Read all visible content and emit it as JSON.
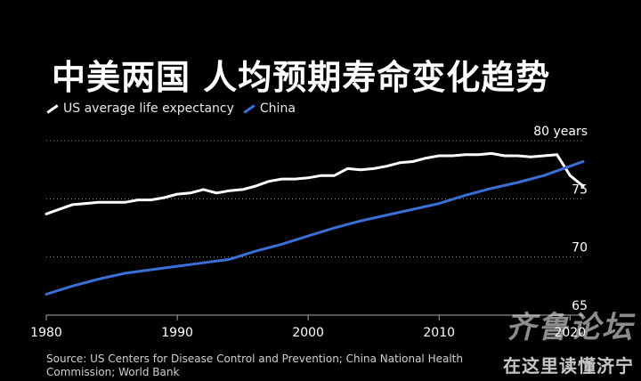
{
  "title": "中美两国 人均预期寿命变化趋势",
  "legend": {
    "us_label": "US average life expectancy",
    "china_label": "China"
  },
  "colors": {
    "us": "#ffffff",
    "china": "#3a6fd8",
    "grid": "#888888",
    "axis": "#aaaaaa"
  },
  "source_text": "Source: US Centers for Disease Control and Prevention; China National Health Commission; World Bank",
  "watermark": {
    "logo": "齐鲁论坛",
    "sub": "在这里读懂济宁"
  },
  "chart_data": {
    "type": "line",
    "title": "中美两国 人均预期寿命变化趋势",
    "xlim": [
      1980,
      2021
    ],
    "ylim": [
      65,
      80
    ],
    "xticks": [
      1980,
      1990,
      2000,
      2010,
      2020
    ],
    "yticks": [
      65,
      70,
      75,
      80
    ],
    "ytick_labels": [
      "65",
      "70",
      "75",
      "80 years"
    ],
    "grid": true,
    "series": [
      {
        "name": "US average life expectancy",
        "color": "#ffffff",
        "x": [
          1980,
          1981,
          1982,
          1983,
          1984,
          1985,
          1986,
          1987,
          1988,
          1989,
          1990,
          1991,
          1992,
          1993,
          1994,
          1995,
          1996,
          1997,
          1998,
          1999,
          2000,
          2001,
          2002,
          2003,
          2004,
          2005,
          2006,
          2007,
          2008,
          2009,
          2010,
          2011,
          2012,
          2013,
          2014,
          2015,
          2016,
          2017,
          2018,
          2019,
          2020,
          2021
        ],
        "y": [
          73.7,
          74.1,
          74.5,
          74.6,
          74.7,
          74.7,
          74.7,
          74.9,
          74.9,
          75.1,
          75.4,
          75.5,
          75.8,
          75.5,
          75.7,
          75.8,
          76.1,
          76.5,
          76.7,
          76.7,
          76.8,
          77.0,
          77.0,
          77.6,
          77.5,
          77.6,
          77.8,
          78.1,
          78.2,
          78.5,
          78.7,
          78.7,
          78.8,
          78.8,
          78.9,
          78.7,
          78.7,
          78.6,
          78.7,
          78.8,
          77.0,
          76.1
        ]
      },
      {
        "name": "China",
        "color": "#3a6fd8",
        "x": [
          1980,
          1982,
          1984,
          1986,
          1988,
          1990,
          1992,
          1994,
          1996,
          1998,
          2000,
          2002,
          2004,
          2006,
          2008,
          2010,
          2012,
          2014,
          2016,
          2018,
          2020,
          2021
        ],
        "y": [
          66.8,
          67.5,
          68.1,
          68.6,
          68.9,
          69.2,
          69.5,
          69.8,
          70.5,
          71.1,
          71.8,
          72.5,
          73.1,
          73.6,
          74.1,
          74.6,
          75.3,
          75.9,
          76.4,
          77.0,
          77.8,
          78.2
        ]
      }
    ]
  }
}
